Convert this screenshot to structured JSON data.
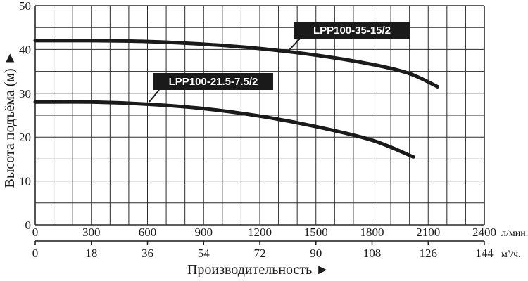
{
  "chart_data": {
    "type": "line",
    "xlabel": "Производительность ►",
    "ylabel": "Высота подъёма (м) ►",
    "x_primary": {
      "unit": "л/мин.",
      "ticks": [
        "0",
        "300",
        "600",
        "900",
        "1200",
        "1500",
        "1800",
        "2100",
        "2400"
      ],
      "range": [
        0,
        2400
      ]
    },
    "x_secondary": {
      "unit": "м³/ч.",
      "ticks": [
        "0",
        "18",
        "36",
        "54",
        "72",
        "90",
        "108",
        "126",
        "144"
      ],
      "range": [
        0,
        144
      ]
    },
    "y_axis": {
      "ticks": [
        "0",
        "10",
        "20",
        "30",
        "40",
        "50"
      ],
      "range": [
        0,
        50
      ]
    },
    "grid": true,
    "series": [
      {
        "name": "LPP100-35-15/2",
        "color": "#1a1a1a",
        "points": [
          [
            0,
            42
          ],
          [
            300,
            42
          ],
          [
            600,
            41.8
          ],
          [
            900,
            41.2
          ],
          [
            1200,
            40.2
          ],
          [
            1500,
            38.7
          ],
          [
            1800,
            36.6
          ],
          [
            2000,
            34.5
          ],
          [
            2150,
            31.5
          ]
        ]
      },
      {
        "name": "LPP100-21.5-7.5/2",
        "color": "#1a1a1a",
        "points": [
          [
            0,
            28
          ],
          [
            300,
            28
          ],
          [
            600,
            27.5
          ],
          [
            900,
            26.5
          ],
          [
            1200,
            24.8
          ],
          [
            1500,
            22.4
          ],
          [
            1800,
            19.3
          ],
          [
            2020,
            15.5
          ]
        ]
      }
    ]
  }
}
